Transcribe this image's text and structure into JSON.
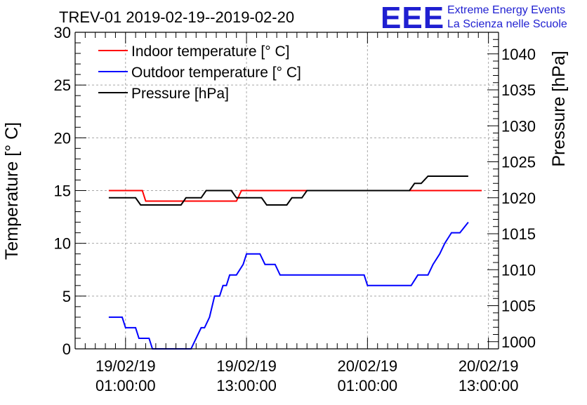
{
  "chart_data": {
    "type": "line",
    "title": "TREV-01 2019-02-19--2019-02-20",
    "logo": {
      "mark": "EEE",
      "line1": "Extreme Energy Events",
      "line2": "La Scienza nelle Scuole"
    },
    "ylabel": "Temperature [° C]",
    "y2label": "Pressure [hPa]",
    "ylim": [
      0,
      30
    ],
    "y2lim": [
      999,
      1043
    ],
    "yticks": [
      0,
      5,
      10,
      15,
      20,
      25,
      30
    ],
    "y2ticks": [
      1000,
      1005,
      1010,
      1015,
      1020,
      1025,
      1030,
      1035,
      1040
    ],
    "xlim": [
      "2019-02-18 20:00",
      "2019-02-20 14:00"
    ],
    "xticks": [
      {
        "time": "2019-02-19 01:00",
        "line1": "19/02/19",
        "line2": "01:00:00"
      },
      {
        "time": "2019-02-19 13:00",
        "line1": "19/02/19",
        "line2": "13:00:00"
      },
      {
        "time": "2019-02-20 01:00",
        "line1": "20/02/19",
        "line2": "01:00:00"
      },
      {
        "time": "2019-02-20 13:00",
        "line1": "20/02/19",
        "line2": "13:00:00"
      }
    ],
    "grid": true,
    "legend_position": "top-left",
    "series": [
      {
        "name": "Indoor temperature [° C]",
        "axis": "left",
        "color": "#ff0000",
        "points": [
          [
            "2019-02-18 23:20",
            15.0
          ],
          [
            "2019-02-19 02:40",
            15.0
          ],
          [
            "2019-02-19 03:00",
            14.0
          ],
          [
            "2019-02-19 12:00",
            14.0
          ],
          [
            "2019-02-19 12:30",
            15.0
          ],
          [
            "2019-02-20 12:20",
            15.0
          ]
        ]
      },
      {
        "name": "Outdoor temperature [° C]",
        "axis": "left",
        "color": "#0000ff",
        "points": [
          [
            "2019-02-18 23:20",
            3.0
          ],
          [
            "2019-02-19 00:40",
            3.0
          ],
          [
            "2019-02-19 01:00",
            2.0
          ],
          [
            "2019-02-19 02:00",
            2.0
          ],
          [
            "2019-02-19 02:20",
            1.0
          ],
          [
            "2019-02-19 03:20",
            1.0
          ],
          [
            "2019-02-19 03:40",
            0.0
          ],
          [
            "2019-02-19 07:30",
            0.0
          ],
          [
            "2019-02-19 08:30",
            2.0
          ],
          [
            "2019-02-19 08:50",
            2.0
          ],
          [
            "2019-02-19 09:20",
            3.0
          ],
          [
            "2019-02-19 09:50",
            5.0
          ],
          [
            "2019-02-19 10:20",
            5.0
          ],
          [
            "2019-02-19 10:40",
            6.0
          ],
          [
            "2019-02-19 11:00",
            6.0
          ],
          [
            "2019-02-19 11:20",
            7.0
          ],
          [
            "2019-02-19 12:00",
            7.0
          ],
          [
            "2019-02-19 12:40",
            8.0
          ],
          [
            "2019-02-19 13:00",
            9.0
          ],
          [
            "2019-02-19 14:20",
            9.0
          ],
          [
            "2019-02-19 14:50",
            8.0
          ],
          [
            "2019-02-19 15:50",
            8.0
          ],
          [
            "2019-02-19 16:20",
            7.0
          ],
          [
            "2019-02-20 00:40",
            7.0
          ],
          [
            "2019-02-20 01:00",
            6.0
          ],
          [
            "2019-02-20 05:20",
            6.0
          ],
          [
            "2019-02-20 06:00",
            7.0
          ],
          [
            "2019-02-20 07:00",
            7.0
          ],
          [
            "2019-02-20 07:30",
            8.0
          ],
          [
            "2019-02-20 08:10",
            9.0
          ],
          [
            "2019-02-20 08:40",
            10.0
          ],
          [
            "2019-02-20 09:20",
            11.0
          ],
          [
            "2019-02-20 10:10",
            11.0
          ],
          [
            "2019-02-20 11:00",
            12.0
          ]
        ]
      },
      {
        "name": "Pressure [hPa]",
        "axis": "right",
        "color": "#000000",
        "points": [
          [
            "2019-02-18 23:20",
            1020.0
          ],
          [
            "2019-02-19 02:00",
            1020.0
          ],
          [
            "2019-02-19 02:30",
            1019.0
          ],
          [
            "2019-02-19 06:30",
            1019.0
          ],
          [
            "2019-02-19 07:00",
            1020.0
          ],
          [
            "2019-02-19 08:30",
            1020.0
          ],
          [
            "2019-02-19 09:00",
            1021.0
          ],
          [
            "2019-02-19 11:30",
            1021.0
          ],
          [
            "2019-02-19 12:00",
            1020.0
          ],
          [
            "2019-02-19 14:30",
            1020.0
          ],
          [
            "2019-02-19 15:00",
            1019.0
          ],
          [
            "2019-02-19 17:00",
            1019.0
          ],
          [
            "2019-02-19 17:30",
            1020.0
          ],
          [
            "2019-02-19 18:30",
            1020.0
          ],
          [
            "2019-02-19 19:00",
            1021.0
          ],
          [
            "2019-02-20 05:10",
            1021.0
          ],
          [
            "2019-02-20 05:40",
            1022.0
          ],
          [
            "2019-02-20 06:20",
            1022.0
          ],
          [
            "2019-02-20 07:00",
            1023.0
          ],
          [
            "2019-02-20 11:00",
            1023.0
          ]
        ]
      }
    ]
  }
}
